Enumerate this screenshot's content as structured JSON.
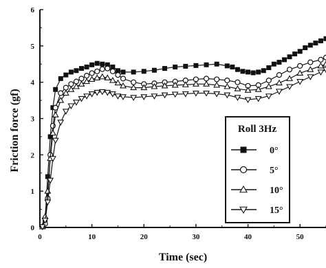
{
  "chart_data": {
    "type": "line",
    "title": "",
    "xlabel": "Time (sec)",
    "ylabel": "Friction force (gf)",
    "xlim": [
      0,
      55
    ],
    "ylim": [
      0,
      6
    ],
    "x_ticks": [
      0,
      10,
      20,
      30,
      40,
      50
    ],
    "y_ticks": [
      0,
      1,
      2,
      3,
      4,
      5,
      6
    ],
    "grid": false,
    "legend": {
      "title": "Roll 3Hz",
      "placement": "right"
    },
    "series": [
      {
        "name": "0°",
        "marker": "filled-square",
        "color": "#000000",
        "points": [
          [
            0.5,
            0.02
          ],
          [
            1.0,
            0.2
          ],
          [
            1.5,
            1.4
          ],
          [
            2.0,
            2.5
          ],
          [
            2.5,
            3.3
          ],
          [
            3.0,
            3.8
          ],
          [
            4.0,
            4.1
          ],
          [
            5.0,
            4.2
          ],
          [
            6.0,
            4.28
          ],
          [
            7.0,
            4.32
          ],
          [
            8.0,
            4.38
          ],
          [
            9.0,
            4.42
          ],
          [
            10.0,
            4.48
          ],
          [
            11.0,
            4.52
          ],
          [
            12.0,
            4.5
          ],
          [
            13.0,
            4.48
          ],
          [
            14.0,
            4.42
          ],
          [
            15.0,
            4.32
          ],
          [
            16.0,
            4.28
          ],
          [
            18.0,
            4.28
          ],
          [
            20.0,
            4.3
          ],
          [
            22.0,
            4.33
          ],
          [
            24.0,
            4.38
          ],
          [
            26.0,
            4.42
          ],
          [
            28.0,
            4.44
          ],
          [
            30.0,
            4.46
          ],
          [
            32.0,
            4.48
          ],
          [
            34.0,
            4.5
          ],
          [
            36.0,
            4.45
          ],
          [
            37.0,
            4.42
          ],
          [
            38.0,
            4.35
          ],
          [
            39.0,
            4.3
          ],
          [
            40.0,
            4.28
          ],
          [
            41.0,
            4.26
          ],
          [
            42.0,
            4.28
          ],
          [
            43.0,
            4.32
          ],
          [
            44.0,
            4.4
          ],
          [
            45.0,
            4.5
          ],
          [
            46.0,
            4.55
          ],
          [
            47.0,
            4.62
          ],
          [
            48.0,
            4.7
          ],
          [
            49.0,
            4.78
          ],
          [
            50.0,
            4.85
          ],
          [
            51.0,
            4.95
          ],
          [
            52.0,
            5.02
          ],
          [
            53.0,
            5.08
          ],
          [
            54.0,
            5.14
          ],
          [
            55.0,
            5.2
          ]
        ]
      },
      {
        "name": "5°",
        "marker": "open-circle",
        "color": "#000000",
        "points": [
          [
            0.5,
            0.02
          ],
          [
            1.0,
            0.1
          ],
          [
            1.5,
            0.8
          ],
          [
            2.0,
            2.0
          ],
          [
            2.5,
            2.8
          ],
          [
            3.0,
            3.3
          ],
          [
            4.0,
            3.7
          ],
          [
            5.0,
            3.85
          ],
          [
            6.0,
            3.95
          ],
          [
            7.0,
            4.02
          ],
          [
            8.0,
            4.1
          ],
          [
            9.0,
            4.18
          ],
          [
            10.0,
            4.25
          ],
          [
            11.0,
            4.3
          ],
          [
            12.0,
            4.36
          ],
          [
            13.0,
            4.38
          ],
          [
            14.0,
            4.3
          ],
          [
            15.0,
            4.2
          ],
          [
            16.0,
            4.1
          ],
          [
            18.0,
            4.0
          ],
          [
            20.0,
            3.95
          ],
          [
            22.0,
            3.97
          ],
          [
            24.0,
            4.0
          ],
          [
            26.0,
            4.02
          ],
          [
            28.0,
            4.05
          ],
          [
            30.0,
            4.08
          ],
          [
            32.0,
            4.1
          ],
          [
            34.0,
            4.08
          ],
          [
            36.0,
            4.05
          ],
          [
            38.0,
            4.0
          ],
          [
            40.0,
            3.9
          ],
          [
            42.0,
            3.92
          ],
          [
            44.0,
            4.05
          ],
          [
            46.0,
            4.2
          ],
          [
            48.0,
            4.35
          ],
          [
            50.0,
            4.45
          ],
          [
            52.0,
            4.55
          ],
          [
            54.0,
            4.62
          ],
          [
            55.0,
            4.68
          ]
        ]
      },
      {
        "name": "10°",
        "marker": "open-triangle-up",
        "color": "#000000",
        "points": [
          [
            0.5,
            0.02
          ],
          [
            1.0,
            0.3
          ],
          [
            1.5,
            1.0
          ],
          [
            2.0,
            1.9
          ],
          [
            2.5,
            2.6
          ],
          [
            3.0,
            3.1
          ],
          [
            4.0,
            3.5
          ],
          [
            5.0,
            3.7
          ],
          [
            6.0,
            3.8
          ],
          [
            7.0,
            3.88
          ],
          [
            8.0,
            3.95
          ],
          [
            9.0,
            4.02
          ],
          [
            10.0,
            4.08
          ],
          [
            11.0,
            4.12
          ],
          [
            12.0,
            4.15
          ],
          [
            13.0,
            4.12
          ],
          [
            14.0,
            4.05
          ],
          [
            15.0,
            3.98
          ],
          [
            16.0,
            3.9
          ],
          [
            18.0,
            3.85
          ],
          [
            20.0,
            3.85
          ],
          [
            22.0,
            3.88
          ],
          [
            24.0,
            3.9
          ],
          [
            26.0,
            3.92
          ],
          [
            28.0,
            3.93
          ],
          [
            30.0,
            3.95
          ],
          [
            32.0,
            3.95
          ],
          [
            34.0,
            3.92
          ],
          [
            36.0,
            3.88
          ],
          [
            38.0,
            3.82
          ],
          [
            40.0,
            3.78
          ],
          [
            42.0,
            3.8
          ],
          [
            44.0,
            3.88
          ],
          [
            46.0,
            3.98
          ],
          [
            48.0,
            4.1
          ],
          [
            50.0,
            4.25
          ],
          [
            52.0,
            4.35
          ],
          [
            54.0,
            4.45
          ],
          [
            55.0,
            4.5
          ]
        ]
      },
      {
        "name": "15°",
        "marker": "open-triangle-down",
        "color": "#000000",
        "points": [
          [
            0.5,
            0.02
          ],
          [
            1.0,
            0.2
          ],
          [
            1.5,
            0.7
          ],
          [
            2.0,
            1.3
          ],
          [
            2.5,
            1.9
          ],
          [
            3.0,
            2.4
          ],
          [
            4.0,
            2.9
          ],
          [
            5.0,
            3.2
          ],
          [
            6.0,
            3.35
          ],
          [
            7.0,
            3.45
          ],
          [
            8.0,
            3.55
          ],
          [
            9.0,
            3.62
          ],
          [
            10.0,
            3.68
          ],
          [
            11.0,
            3.72
          ],
          [
            12.0,
            3.74
          ],
          [
            13.0,
            3.72
          ],
          [
            14.0,
            3.68
          ],
          [
            15.0,
            3.62
          ],
          [
            16.0,
            3.6
          ],
          [
            18.0,
            3.58
          ],
          [
            20.0,
            3.6
          ],
          [
            22.0,
            3.62
          ],
          [
            24.0,
            3.65
          ],
          [
            26.0,
            3.67
          ],
          [
            28.0,
            3.68
          ],
          [
            30.0,
            3.7
          ],
          [
            32.0,
            3.7
          ],
          [
            34.0,
            3.68
          ],
          [
            36.0,
            3.65
          ],
          [
            38.0,
            3.58
          ],
          [
            40.0,
            3.52
          ],
          [
            42.0,
            3.55
          ],
          [
            44.0,
            3.62
          ],
          [
            46.0,
            3.75
          ],
          [
            48.0,
            3.88
          ],
          [
            50.0,
            4.02
          ],
          [
            52.0,
            4.15
          ],
          [
            54.0,
            4.28
          ],
          [
            55.0,
            4.35
          ]
        ]
      }
    ]
  }
}
